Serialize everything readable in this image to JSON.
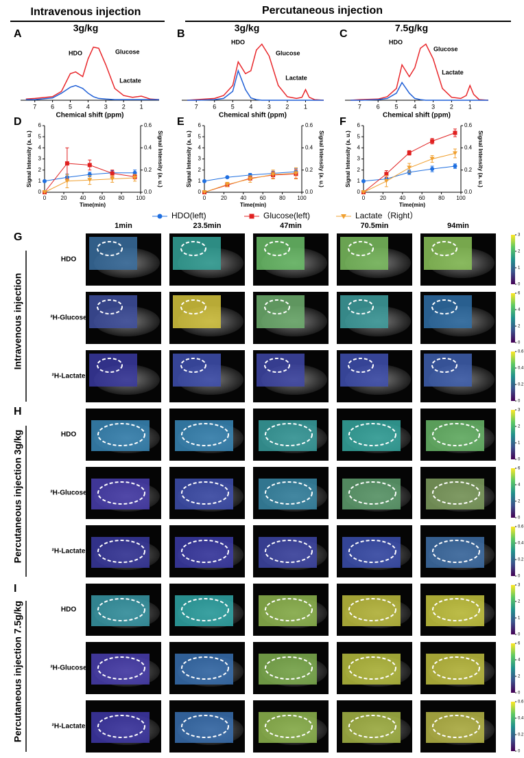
{
  "headers": {
    "intravenous": "Intravenous injection",
    "percutaneous": "Percutaneous injection"
  },
  "chart_data": [
    {
      "type": "spectrum",
      "panel": "A",
      "title": "3g/kg",
      "xlabel": "Chemical shift (ppm)",
      "xlim": [
        7.8,
        0
      ],
      "xticks": [
        7,
        6,
        5,
        4,
        3,
        2,
        1
      ],
      "ylim": [
        0,
        1
      ],
      "x": [
        7.5,
        7,
        6,
        5.5,
        5,
        4.7,
        4.3,
        4,
        3.7,
        3.4,
        3,
        2.5,
        2,
        1.5,
        1.2,
        1,
        0.8,
        0.5,
        0
      ],
      "annotations": [
        "HDO",
        "Glucose",
        "Lactate"
      ],
      "series": [
        {
          "color": "#e8262a",
          "values": [
            0.02,
            0.03,
            0.06,
            0.15,
            0.45,
            0.48,
            0.4,
            0.7,
            0.9,
            0.88,
            0.6,
            0.2,
            0.08,
            0.05,
            0.06,
            0.07,
            0.05,
            0.02,
            0.01
          ]
        },
        {
          "color": "#1f5fd6",
          "values": [
            0.01,
            0.01,
            0.04,
            0.12,
            0.22,
            0.25,
            0.2,
            0.12,
            0.06,
            0.03,
            0.02,
            0.01,
            0.01,
            0.01,
            0.01,
            0.01,
            0.01,
            0.01,
            0.01
          ]
        }
      ]
    },
    {
      "type": "spectrum",
      "panel": "B",
      "title": "3g/kg",
      "xlabel": "Chemical shift (ppm)",
      "xlim": [
        7.8,
        0
      ],
      "xticks": [
        7,
        6,
        5,
        4,
        3,
        2,
        1
      ],
      "ylim": [
        0,
        1
      ],
      "x": [
        7.5,
        7,
        6,
        5.5,
        5,
        4.7,
        4.3,
        4,
        3.7,
        3.4,
        3,
        2.5,
        2,
        1.5,
        1.2,
        1,
        0.8,
        0.5,
        0
      ],
      "annotations": [
        "HDO",
        "Glucose",
        "Lactate"
      ],
      "series": [
        {
          "color": "#e8262a",
          "values": [
            0,
            0.01,
            0.03,
            0.08,
            0.25,
            0.65,
            0.45,
            0.5,
            0.85,
            0.95,
            0.75,
            0.25,
            0.06,
            0.03,
            0.05,
            0.18,
            0.05,
            0.01,
            0
          ]
        },
        {
          "color": "#1f5fd6",
          "values": [
            0,
            0,
            0.01,
            0.03,
            0.15,
            0.5,
            0.18,
            0.04,
            0.01,
            0,
            0,
            0,
            0,
            0,
            0,
            0,
            0,
            0,
            0
          ]
        }
      ]
    },
    {
      "type": "spectrum",
      "panel": "C",
      "title": "7.5g/kg",
      "xlabel": "Chemical shift (ppm)",
      "xlim": [
        7.8,
        0
      ],
      "xticks": [
        7,
        6,
        5,
        4,
        3,
        2,
        1
      ],
      "ylim": [
        0,
        1
      ],
      "x": [
        7.5,
        7,
        6,
        5.5,
        5,
        4.7,
        4.3,
        4,
        3.7,
        3.4,
        3,
        2.5,
        2,
        1.5,
        1.2,
        1,
        0.8,
        0.5,
        0
      ],
      "annotations": [
        "HDO",
        "Glucose",
        "Lactate"
      ],
      "series": [
        {
          "color": "#e8262a",
          "values": [
            0,
            0.01,
            0.02,
            0.06,
            0.2,
            0.6,
            0.4,
            0.55,
            0.88,
            0.95,
            0.7,
            0.2,
            0.05,
            0.03,
            0.08,
            0.25,
            0.1,
            0.01,
            0
          ]
        },
        {
          "color": "#1f5fd6",
          "values": [
            0,
            0,
            0.01,
            0.03,
            0.12,
            0.3,
            0.12,
            0.03,
            0.01,
            0,
            0,
            0,
            0,
            0,
            0,
            0,
            0,
            0,
            0
          ]
        }
      ]
    },
    {
      "type": "line",
      "panel": "D",
      "xlabel": "Time(min)",
      "ylabel": "Signal Intensity (a. u.)",
      "y2label": "Signal Intensity (a. u.)",
      "x": [
        0,
        23.5,
        47,
        70.5,
        94
      ],
      "xlim": [
        0,
        100
      ],
      "xticks": [
        0,
        20,
        40,
        60,
        80,
        100
      ],
      "ylim": [
        0,
        6
      ],
      "yticks": [
        0,
        1,
        2,
        3,
        4,
        5,
        6
      ],
      "y2lim": [
        0,
        0.6
      ],
      "y2ticks": [
        {
          "value": 0,
          "label": "0.0"
        },
        {
          "value": 0.2,
          "label": "0.2"
        },
        {
          "value": 0.4,
          "label": "0.4"
        },
        {
          "value": 0.6,
          "label": "0.6"
        }
      ],
      "series": [
        {
          "name": "HDO(left)",
          "color": "#1f6fe0",
          "marker": "circle",
          "values": [
            1.0,
            1.35,
            1.6,
            1.75,
            1.75
          ],
          "errors": [
            0,
            0.3,
            0.2,
            0.2,
            0.25
          ]
        },
        {
          "name": "Glucose(left)",
          "color": "#e02020",
          "marker": "square",
          "values": [
            0,
            2.6,
            2.45,
            1.7,
            1.4
          ],
          "errors": [
            0,
            1.4,
            0.45,
            0.3,
            0.2
          ]
        },
        {
          "name": "Lactate（Right）",
          "color": "#f0a030",
          "marker": "triangle",
          "axis": "y2",
          "values": [
            0,
            0.1,
            0.11,
            0.12,
            0.13
          ],
          "errors": [
            0,
            0.06,
            0.04,
            0.03,
            0.03
          ]
        }
      ]
    },
    {
      "type": "line",
      "panel": "E",
      "xlabel": "Time(min)",
      "ylabel": "Signal Intensity (a. u.)",
      "y2label": "Signal Intensity (a. u.)",
      "x": [
        0,
        23.5,
        47,
        70.5,
        94
      ],
      "xlim": [
        0,
        100
      ],
      "xticks": [
        0,
        20,
        40,
        60,
        80,
        100
      ],
      "ylim": [
        0,
        6
      ],
      "yticks": [
        0,
        1,
        2,
        3,
        4,
        5,
        6
      ],
      "y2lim": [
        0,
        0.6
      ],
      "y2ticks": [
        {
          "value": 0,
          "label": "0.0"
        },
        {
          "value": 0.2,
          "label": "0.2"
        },
        {
          "value": 0.4,
          "label": "0.4"
        },
        {
          "value": 0.6,
          "label": "0.6"
        }
      ],
      "series": [
        {
          "color": "#1f6fe0",
          "marker": "circle",
          "values": [
            1.0,
            1.35,
            1.55,
            1.7,
            1.85
          ],
          "errors": [
            0,
            0.05,
            0.15,
            0.2,
            0.3
          ]
        },
        {
          "color": "#e02020",
          "marker": "square",
          "values": [
            0,
            0.65,
            1.25,
            1.55,
            1.65
          ],
          "errors": [
            0,
            0.1,
            0.15,
            0.3,
            0.4
          ]
        },
        {
          "color": "#f0a030",
          "marker": "triangle",
          "axis": "y2",
          "values": [
            0,
            0.07,
            0.12,
            0.16,
            0.17
          ],
          "errors": [
            0,
            0.02,
            0.03,
            0.04,
            0.05
          ]
        }
      ]
    },
    {
      "type": "line",
      "panel": "F",
      "xlabel": "Time(min)",
      "ylabel": "Signal Intensity (a. u.)",
      "y2label": "Signal Intensity (a. u.)",
      "x": [
        0,
        23.5,
        47,
        70.5,
        94
      ],
      "xlim": [
        0,
        100
      ],
      "xticks": [
        0,
        20,
        40,
        60,
        80,
        100
      ],
      "ylim": [
        0,
        6
      ],
      "yticks": [
        0,
        1,
        2,
        3,
        4,
        5,
        6
      ],
      "y2lim": [
        0,
        0.6
      ],
      "y2ticks": [
        {
          "value": 0,
          "label": "0.0"
        },
        {
          "value": 0.2,
          "label": "0.2"
        },
        {
          "value": 0.4,
          "label": "0.4"
        },
        {
          "value": 0.6,
          "label": "0.6"
        }
      ],
      "series": [
        {
          "color": "#1f6fe0",
          "marker": "circle",
          "values": [
            1.0,
            1.2,
            1.8,
            2.1,
            2.35
          ],
          "errors": [
            0,
            0.15,
            0.2,
            0.25,
            0.2
          ]
        },
        {
          "color": "#e02020",
          "marker": "square",
          "values": [
            0,
            1.65,
            3.55,
            4.6,
            5.35
          ],
          "errors": [
            0,
            0.3,
            0.2,
            0.25,
            0.35
          ]
        },
        {
          "color": "#f0a030",
          "marker": "triangle",
          "axis": "y2",
          "values": [
            0,
            0.1,
            0.22,
            0.3,
            0.35
          ],
          "errors": [
            0,
            0.05,
            0.04,
            0.03,
            0.04
          ]
        }
      ]
    }
  ],
  "imaging": {
    "times": [
      "1min",
      "23.5min",
      "47min",
      "70.5min",
      "94min"
    ],
    "sections": [
      {
        "panel": "G",
        "label": "Intravenous injection",
        "rows": [
          {
            "name": "HDO",
            "lim": [
              0,
              3
            ],
            "ticks": [
              0,
              1,
              2,
              3
            ],
            "colors": [
              "#3a6fa0",
              "#35a59a",
              "#6cbf6a",
              "#7dc060",
              "#8cc45a"
            ]
          },
          {
            "name": "²H-Glucose",
            "lim": [
              0,
              6
            ],
            "ticks": [
              0,
              2,
              4,
              6
            ],
            "colors": [
              "#4050a0",
              "#d8c840",
              "#70b070",
              "#40a0a0",
              "#3070a8"
            ]
          },
          {
            "name": "²H-Lactate",
            "lim": [
              0,
              0.6
            ],
            "ticks": [
              0,
              0.2,
              0.4,
              0.6
            ],
            "colors": [
              "#3a3aa0",
              "#4050b0",
              "#4048a8",
              "#4050b0",
              "#4060b0"
            ]
          }
        ]
      },
      {
        "panel": "H",
        "label": "Percutaneous injection 3g/kg",
        "rows": [
          {
            "name": "HDO",
            "lim": [
              0,
              3
            ],
            "ticks": [
              0,
              1,
              2,
              3
            ],
            "colors": [
              "#3a88b8",
              "#3a88b8",
              "#3aa0a0",
              "#36a8a0",
              "#6ab86a"
            ]
          },
          {
            "name": "²H-Glucose",
            "lim": [
              0,
              6
            ],
            "ticks": [
              0,
              2,
              4,
              6
            ],
            "colors": [
              "#4a40b0",
              "#4050b0",
              "#3a8aa8",
              "#60a070",
              "#80a060"
            ]
          },
          {
            "name": "²H-Lactate",
            "lim": [
              0,
              0.6
            ],
            "ticks": [
              0,
              0.2,
              0.4,
              0.6
            ],
            "colors": [
              "#3a3aa0",
              "#3c3ca8",
              "#4048a8",
              "#3c50b0",
              "#4070a8"
            ]
          }
        ]
      },
      {
        "panel": "I",
        "label": "Percutaneous injection 7.5g/kg",
        "rows": [
          {
            "name": "HDO",
            "lim": [
              0,
              3
            ],
            "ticks": [
              0,
              1,
              2,
              3
            ],
            "colors": [
              "#3a9aa8",
              "#30a8a8",
              "#90b850",
              "#c0c040",
              "#c8c840"
            ]
          },
          {
            "name": "²H-Glucose",
            "lim": [
              0,
              6
            ],
            "ticks": [
              0,
              2,
              4,
              6
            ],
            "colors": [
              "#4a40b0",
              "#3870b0",
              "#80b050",
              "#b8c040",
              "#c0c040"
            ]
          },
          {
            "name": "²H-Lactate",
            "lim": [
              0,
              0.6
            ],
            "ticks": [
              0,
              0.2,
              0.4,
              0.6
            ],
            "colors": [
              "#4038a8",
              "#3a70b0",
              "#90b850",
              "#a8b848",
              "#b8b848"
            ]
          }
        ]
      }
    ]
  }
}
